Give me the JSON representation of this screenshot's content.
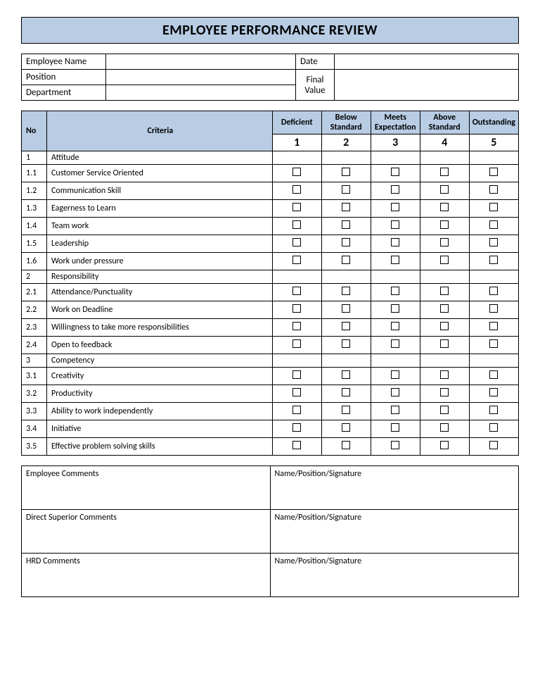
{
  "colors": {
    "header_blue": "#b8cce4",
    "border": "#000000",
    "background": "#ffffff",
    "text": "#000000"
  },
  "title": "EMPLOYEE PERFORMANCE REVIEW",
  "info": {
    "employee_name_label": "Employee Name",
    "date_label": "Date",
    "position_label": "Position",
    "department_label": "Department",
    "final_value_label": "Final Value"
  },
  "rating_headers": {
    "no": "No",
    "criteria": "Criteria",
    "levels": [
      {
        "label": "Deficient",
        "num": "1"
      },
      {
        "label": "Below Standard",
        "num": "2"
      },
      {
        "label": "Meets Expectation",
        "num": "3"
      },
      {
        "label": "Above Standard",
        "num": "4"
      },
      {
        "label": "Outstanding",
        "num": "5"
      }
    ]
  },
  "rows": [
    {
      "no": "1",
      "label": "Attitude",
      "section": true
    },
    {
      "no": "1.1",
      "label": "Customer Service Oriented"
    },
    {
      "no": "1.2",
      "label": "Communication Skill"
    },
    {
      "no": "1.3",
      "label": "Eagerness to Learn"
    },
    {
      "no": "1.4",
      "label": "Team work"
    },
    {
      "no": "1.5",
      "label": "Leadership"
    },
    {
      "no": "1.6",
      "label": "Work under pressure"
    },
    {
      "no": "2",
      "label": "Responsibility",
      "section": true
    },
    {
      "no": "2.1",
      "label": "Attendance/Punctuality"
    },
    {
      "no": "2.2",
      "label": "Work on Deadline"
    },
    {
      "no": "2.3",
      "label": "Willingness to take more responsibilities"
    },
    {
      "no": "2.4",
      "label": "Open to feedback"
    },
    {
      "no": "3",
      "label": "Competency",
      "section": true
    },
    {
      "no": "3.1",
      "label": "Creativity"
    },
    {
      "no": "3.2",
      "label": "Productivity"
    },
    {
      "no": "3.3",
      "label": "Ability to work independently"
    },
    {
      "no": "3.4",
      "label": "Initiative"
    },
    {
      "no": "3.5",
      "label": "Effective problem solving skills"
    }
  ],
  "comments": {
    "employee": "Employee Comments",
    "superior": "Direct Superior Comments",
    "hrd": "HRD Comments",
    "signature": "Name/Position/Signature"
  }
}
